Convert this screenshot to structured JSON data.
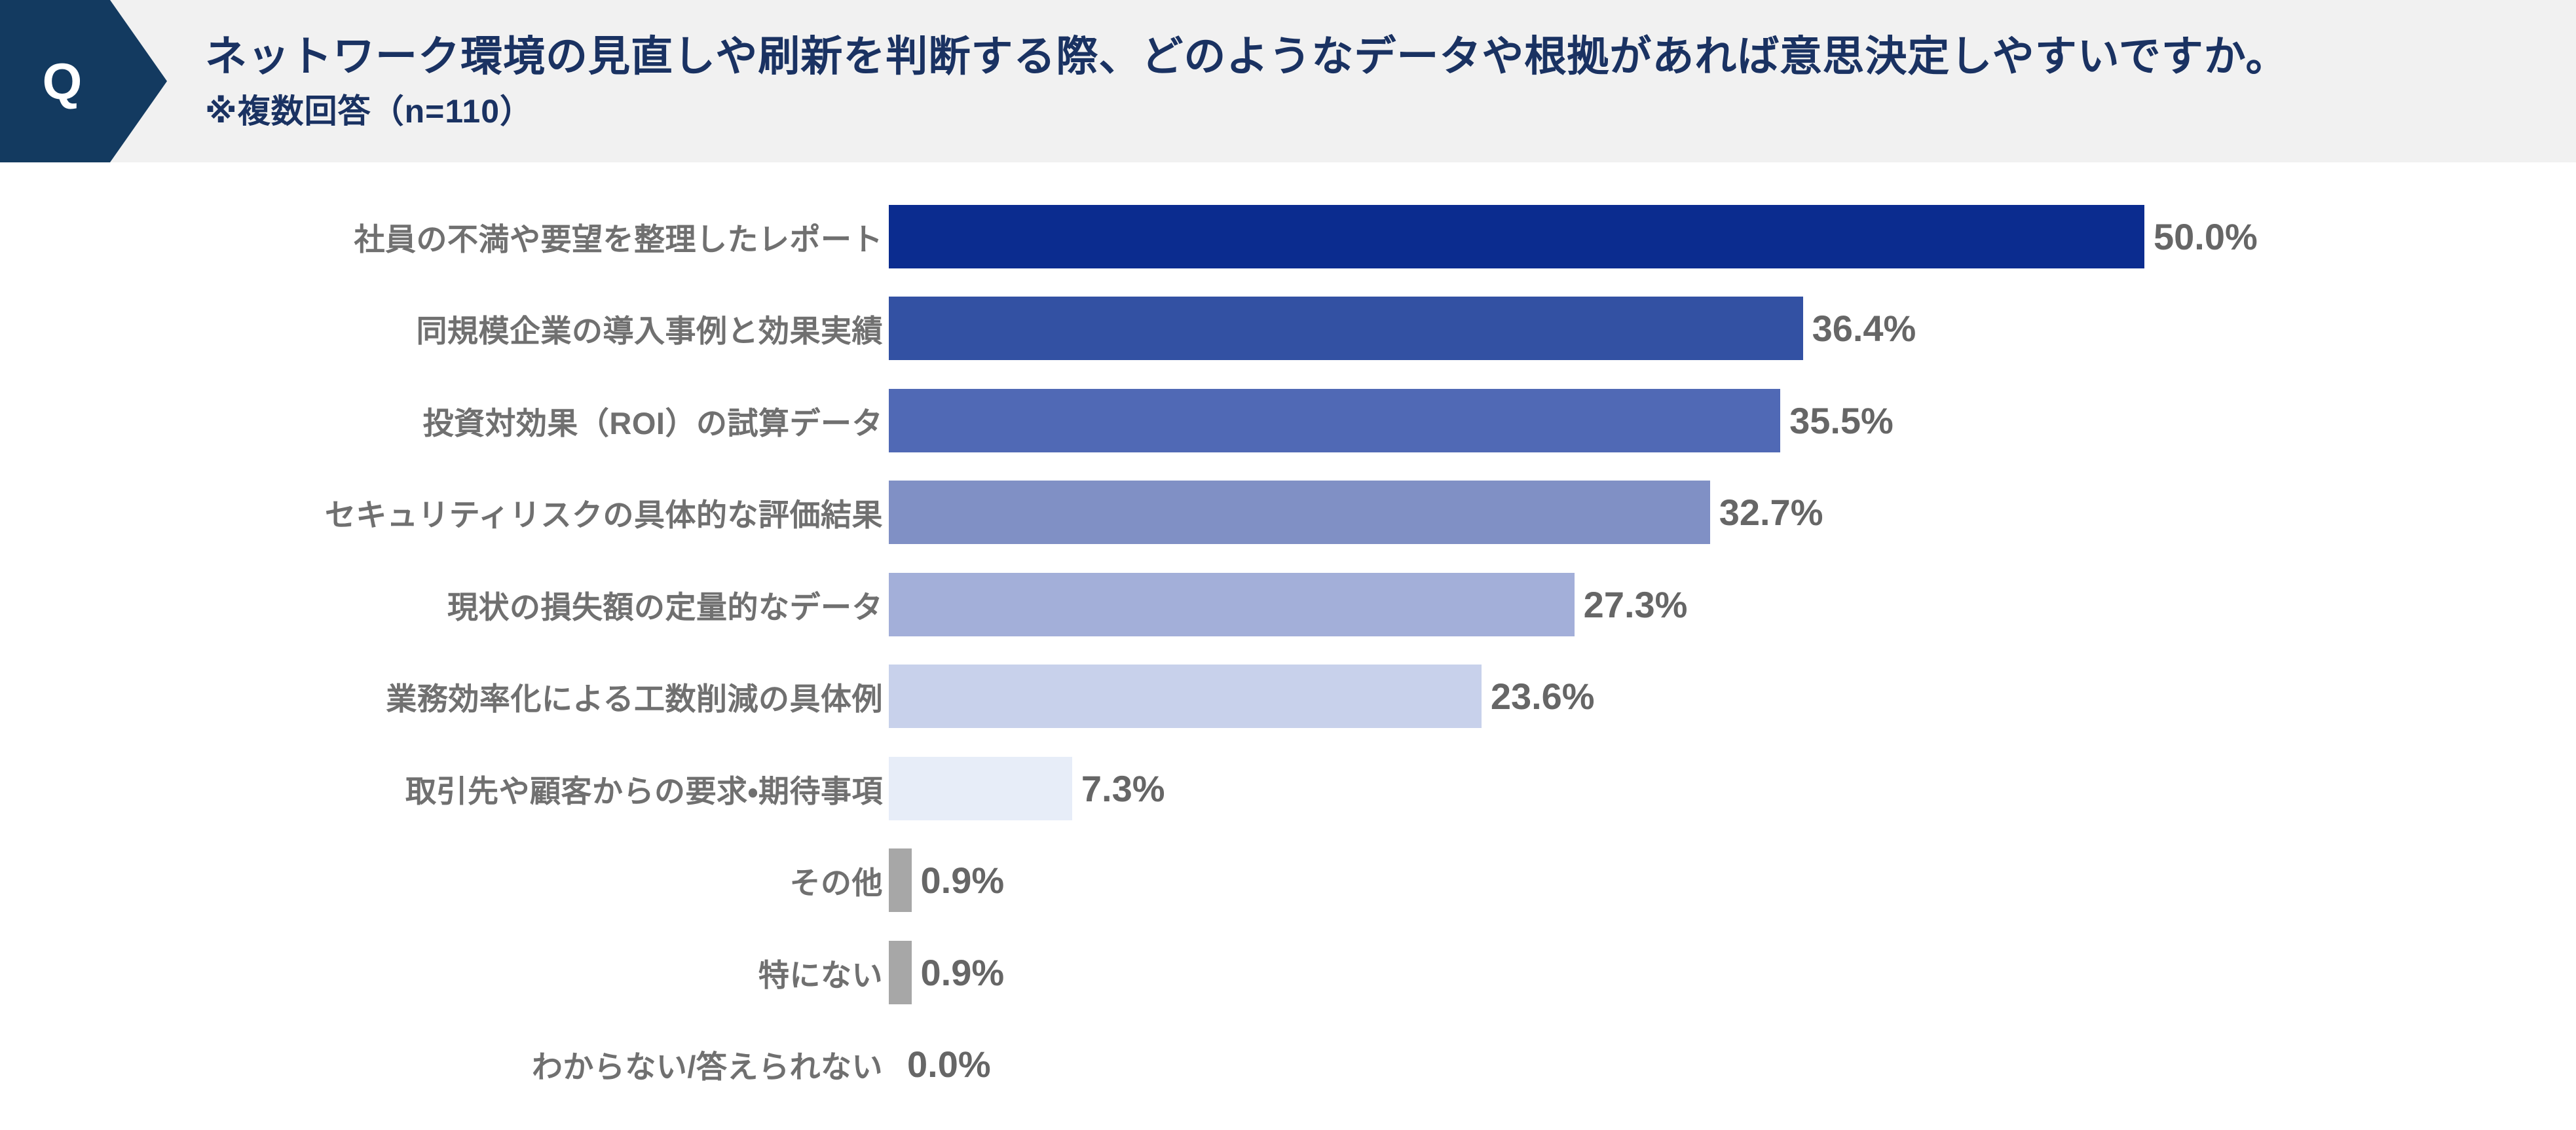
{
  "header": {
    "badge_label": "Q",
    "title": "ネットワーク環境の見直しや刷新を判断する際、どのようなデータや根拠があれば意思決定しやすいですか。",
    "note": "※複数回答（n=110）",
    "band_background": "#F1F1F1",
    "badge_color": "#133A60",
    "badge_text_color": "#FFFFFF",
    "title_color": "#1A3262"
  },
  "chart_data": {
    "type": "bar",
    "orientation": "horizontal",
    "title": "",
    "xlabel": "",
    "ylabel": "",
    "unit": "%",
    "sample_size": 110,
    "xlim": [
      0,
      67
    ],
    "grid": false,
    "legend": false,
    "categories": [
      "社員の不満や要望を整理したレポート",
      "同規模企業の導入事例と効果実績",
      "投資対効果（ROI）の試算データ",
      "セキュリティリスクの具体的な評価結果",
      "現状の損失額の定量的なデータ",
      "業務効率化による工数削減の具体例",
      "取引先や顧客からの要求・期待事項",
      "その他",
      "特にない",
      "わからない/答えられない"
    ],
    "values": [
      50.0,
      36.4,
      35.5,
      32.7,
      27.3,
      23.6,
      7.3,
      0.9,
      0.9,
      0.0
    ],
    "value_labels": [
      "50.0%",
      "36.4%",
      "35.5%",
      "32.7%",
      "27.3%",
      "23.6%",
      "7.3%",
      "0.9%",
      "0.9%",
      "0.0%"
    ],
    "bar_colors": [
      "#0B2C8F",
      "#3351A3",
      "#5069B5",
      "#8090C5",
      "#A3AFD9",
      "#C8D1EB",
      "#E7EDF8",
      "#A7A7A7",
      "#A7A7A7",
      "#A7A7A7"
    ],
    "category_label_color": "#707070",
    "value_label_color": "#666666"
  }
}
